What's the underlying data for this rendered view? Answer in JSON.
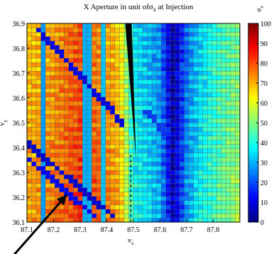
{
  "figure": {
    "title_prefix": "X Aperture in unit of",
    "title_symbol": "σ",
    "title_symbol_sub": "x",
    "title_suffix": " at Injection",
    "xlabel": "ν",
    "xlabel_sub": "x",
    "ylabel": "ν",
    "ylabel_sub": "y",
    "colorbar_label": "σ",
    "colorbar_label_sub": "x"
  },
  "chart_data": {
    "type": "heatmap",
    "title": "X Aperture in unit of σx at Injection",
    "xlabel": "νx",
    "ylabel": "νy",
    "xlim": [
      87.1,
      87.9
    ],
    "ylim": [
      36.1,
      36.9
    ],
    "x_ticks": [
      "87.1",
      "87.2",
      "87.3",
      "87.4",
      "87.5",
      "87.6",
      "87.7",
      "87.8"
    ],
    "y_ticks": [
      "36.1",
      "36.2",
      "36.3",
      "36.4",
      "36.5",
      "36.6",
      "36.7",
      "36.8",
      "36.9"
    ],
    "colorbar": {
      "range": [
        0,
        100
      ],
      "ticks": [
        "0",
        "10",
        "20",
        "30",
        "40",
        "50",
        "60",
        "70",
        "80",
        "90",
        "100"
      ],
      "colormap": "jet",
      "label": "σx"
    },
    "grid_cells": 46,
    "base_profile_by_x": [
      {
        "x": 87.1,
        "value": 72
      },
      {
        "x": 87.15,
        "value": 74
      },
      {
        "x": 87.2,
        "value": 76
      },
      {
        "x": 87.25,
        "value": 80
      },
      {
        "x": 87.3,
        "value": 84
      },
      {
        "x": 87.35,
        "value": 80
      },
      {
        "x": 87.4,
        "value": 76
      },
      {
        "x": 87.45,
        "value": 70
      },
      {
        "x": 87.5,
        "value": 40
      },
      {
        "x": 87.55,
        "value": 36
      },
      {
        "x": 87.6,
        "value": 30
      },
      {
        "x": 87.65,
        "value": 6
      },
      {
        "x": 87.7,
        "value": 28
      },
      {
        "x": 87.75,
        "value": 38
      },
      {
        "x": 87.8,
        "value": 44
      },
      {
        "x": 87.85,
        "value": 50
      },
      {
        "x": 87.9,
        "value": 54
      }
    ],
    "y_gradient_per_unit": -6,
    "low_aperture_lines": [
      {
        "from": [
          87.1,
          36.42
        ],
        "to": [
          87.43,
          36.12
        ],
        "value": 8
      },
      {
        "from": [
          87.1,
          36.36
        ],
        "to": [
          87.36,
          36.12
        ],
        "value": 12
      },
      {
        "from": [
          87.14,
          36.88
        ],
        "to": [
          87.46,
          36.5
        ],
        "value": 10
      },
      {
        "from": [
          87.55,
          36.55
        ],
        "to": [
          87.68,
          36.38
        ],
        "value": 18
      }
    ],
    "low_aperture_columns": [
      {
        "x": 87.16,
        "value": 28
      },
      {
        "x": 87.33,
        "value": 30
      },
      {
        "x": 87.39,
        "value": 32
      }
    ],
    "resonance_line": {
      "from": [
        87.48,
        36.9
      ],
      "to": [
        87.51,
        36.35
      ],
      "value": 0
    },
    "dashed_line": {
      "x": 87.49,
      "from_y": 36.1,
      "to_y": 36.37
    },
    "annotation_arrow": {
      "from": [
        87.02,
        35.93
      ],
      "to": [
        87.25,
        36.21
      ]
    }
  }
}
